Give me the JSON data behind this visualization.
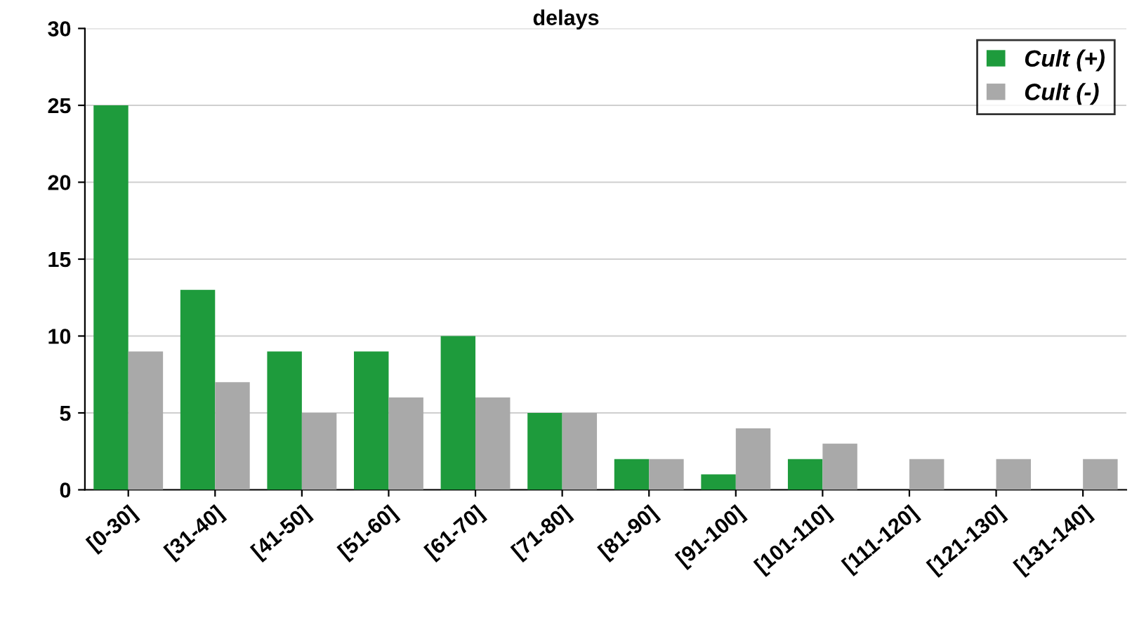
{
  "chart_data": {
    "type": "bar",
    "title": "delays",
    "categories": [
      "[0-30]",
      "[31-40]",
      "[41-50]",
      "[51-60]",
      "[61-70]",
      "[71-80]",
      "[81-90]",
      "[91-100]",
      "[101-110]",
      "[111-120]",
      "[121-130]",
      "[131-140]"
    ],
    "series": [
      {
        "name": "Cult (+)",
        "color": "#1e9b3c",
        "values": [
          25,
          13,
          9,
          9,
          10,
          5,
          2,
          1,
          2,
          null,
          null,
          null
        ]
      },
      {
        "name": "Cult (-)",
        "color": "#a9a9a9",
        "values": [
          9,
          7,
          5,
          6,
          6,
          5,
          2,
          4,
          3,
          2,
          2,
          2
        ]
      }
    ],
    "ylim": [
      0,
      30
    ],
    "yticks": [
      0,
      5,
      10,
      15,
      20,
      25,
      30
    ],
    "grid": "y",
    "legend": "top right"
  }
}
